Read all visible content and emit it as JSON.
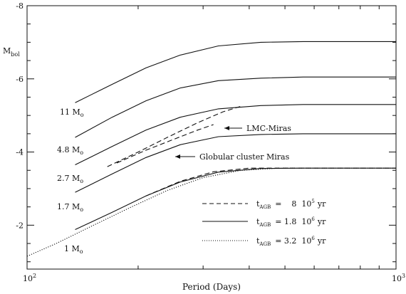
{
  "chart_data": {
    "type": "line",
    "title": "",
    "xlabel": "Period (Days)",
    "ylabel": "M",
    "ylabel_sub": "bol",
    "x_scale": "log",
    "xlim": [
      100,
      1000
    ],
    "ylim": [
      -0.8,
      -8.0
    ],
    "x_ticks": [
      {
        "value": 100,
        "base": "10",
        "exp": "2"
      },
      {
        "value": 1000,
        "base": "10",
        "exp": "3"
      }
    ],
    "y_ticks": [
      {
        "value": -2,
        "label": "-2"
      },
      {
        "value": -4,
        "label": "-4"
      },
      {
        "value": -6,
        "label": "-6"
      },
      {
        "value": -8,
        "label": "-8"
      }
    ],
    "mass_labels": [
      {
        "text": "11 M",
        "sub": "o"
      },
      {
        "text": "4.8 M",
        "sub": "o"
      },
      {
        "text": "2.7 M",
        "sub": "o"
      },
      {
        "text": "1.7 M",
        "sub": "o"
      },
      {
        "text": "1 M",
        "sub": "o"
      }
    ],
    "annotations": [
      {
        "text": "LMC-Miras",
        "arrow_from": [
          365,
          -5.1
        ],
        "arrow_to": [
          320,
          -5.1
        ]
      },
      {
        "text": "Globular cluster Miras",
        "arrow_from": [
          245,
          -4.1
        ],
        "arrow_to": [
          220,
          -4.1
        ]
      }
    ],
    "legend": {
      "placement": "bottom-right",
      "entries": [
        {
          "style": "dashed",
          "label": "t",
          "sub": "AGB",
          "value": "=    8  10",
          "sup": "5",
          "unit": "yr"
        },
        {
          "style": "solid",
          "label": "t",
          "sub": "AGB",
          "value": "= 1.8  10",
          "sup": "6",
          "unit": "yr"
        },
        {
          "style": "dotted",
          "label": "t",
          "sub": "AGB",
          "value": "= 3.2  10",
          "sup": "6",
          "unit": "yr"
        }
      ]
    },
    "series": [
      {
        "style": "solid",
        "x": [
          135,
          170,
          210,
          260,
          330,
          430,
          560,
          750,
          1000
        ],
        "y": [
          -5.35,
          -5.85,
          -6.3,
          -6.65,
          -6.9,
          -7.0,
          -7.02,
          -7.02,
          -7.02
        ]
      },
      {
        "style": "solid",
        "x": [
          135,
          170,
          210,
          260,
          330,
          430,
          560,
          750,
          1000
        ],
        "y": [
          -4.4,
          -4.95,
          -5.4,
          -5.75,
          -5.95,
          -6.02,
          -6.05,
          -6.05,
          -6.05
        ]
      },
      {
        "style": "solid",
        "x": [
          135,
          170,
          210,
          260,
          330,
          430,
          560,
          750,
          1000
        ],
        "y": [
          -3.65,
          -4.15,
          -4.6,
          -4.95,
          -5.18,
          -5.27,
          -5.3,
          -5.3,
          -5.3
        ]
      },
      {
        "style": "solid",
        "x": [
          135,
          170,
          210,
          260,
          330,
          430,
          560,
          750,
          1000
        ],
        "y": [
          -2.9,
          -3.4,
          -3.85,
          -4.2,
          -4.42,
          -4.48,
          -4.5,
          -4.5,
          -4.5
        ]
      },
      {
        "style": "solid",
        "x": [
          135,
          170,
          210,
          260,
          330,
          430,
          560,
          750,
          1000
        ],
        "y": [
          -1.88,
          -2.35,
          -2.8,
          -3.18,
          -3.45,
          -3.55,
          -3.56,
          -3.56,
          -3.56
        ]
      },
      {
        "style": "dotted",
        "x": [
          100,
          120,
          150,
          190,
          240,
          300,
          380,
          480,
          600,
          800,
          1000
        ],
        "y": [
          -1.15,
          -1.5,
          -1.98,
          -2.48,
          -2.95,
          -3.3,
          -3.5,
          -3.56,
          -3.56,
          -3.56,
          -3.56
        ]
      },
      {
        "style": "dashed",
        "x": [
          210,
          260,
          320,
          400,
          470,
          560,
          700,
          1000
        ],
        "y": [
          -2.8,
          -3.2,
          -3.46,
          -3.56,
          -3.56,
          -3.56,
          -3.56,
          -3.56
        ]
      },
      {
        "style": "dashed",
        "x": [
          165,
          200,
          240,
          290,
          340,
          380
        ],
        "y": [
          -3.6,
          -4.0,
          -4.4,
          -4.8,
          -5.1,
          -5.25
        ]
      },
      {
        "style": "dashed",
        "x": [
          175,
          210,
          250,
          290,
          320
        ],
        "y": [
          -3.7,
          -4.05,
          -4.35,
          -4.6,
          -4.75
        ]
      }
    ]
  }
}
